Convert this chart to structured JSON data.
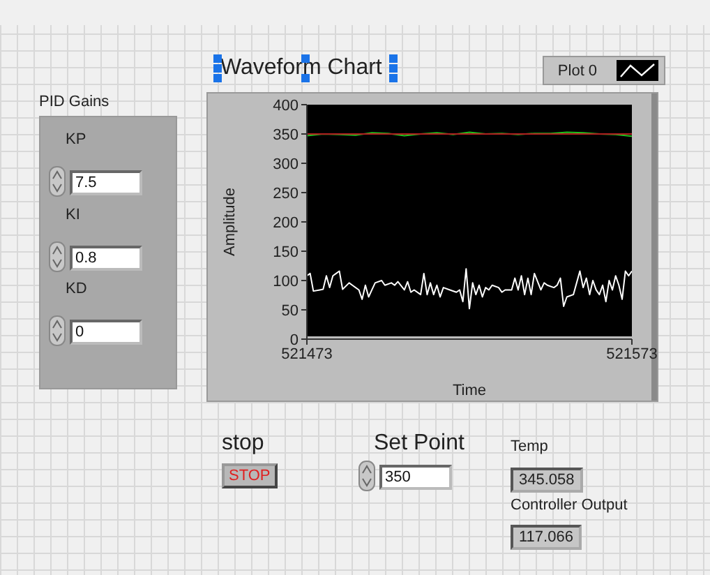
{
  "chart_data": {
    "type": "line",
    "title": "Waveform Chart",
    "xlabel": "Time",
    "ylabel": "Amplitude",
    "xlim": [
      521473,
      521573
    ],
    "xticks": [
      521473,
      521573
    ],
    "ylim": [
      0,
      400
    ],
    "yticks": [
      0,
      50,
      100,
      150,
      200,
      250,
      300,
      350,
      400
    ],
    "legend": "top right",
    "marker": "none",
    "line_style": "solid",
    "series": [
      {
        "name": "Plot 0",
        "color": "#ffffff",
        "x": [
          521473,
          521474,
          521475,
          521477,
          521478,
          521479,
          521480,
          521481,
          521482,
          521483,
          521484,
          521486,
          521487,
          521489,
          521490,
          521491,
          521492,
          521493,
          521494,
          521496,
          521497,
          521499,
          521500,
          521501,
          521503,
          521504,
          521505,
          521506,
          521508,
          521509,
          521510,
          521511,
          521512,
          521513,
          521514,
          521515,
          521517,
          521519,
          521520,
          521521,
          521522,
          521523,
          521524,
          521525,
          521526,
          521527,
          521528,
          521529,
          521530,
          521532,
          521533,
          521534,
          521536,
          521537,
          521538,
          521539,
          521540,
          521541,
          521542,
          521543,
          521545,
          521546,
          521547,
          521549,
          521550,
          521551,
          521552,
          521553,
          521555,
          521556,
          521557,
          521558,
          521559,
          521560,
          521561,
          521562,
          521563,
          521564,
          521565,
          521566,
          521567,
          521568,
          521569,
          521570,
          521571,
          521572,
          521573
        ],
        "values": [
          108,
          112,
          82,
          84,
          85,
          108,
          88,
          108,
          112,
          116,
          85,
          96,
          92,
          84,
          68,
          92,
          72,
          84,
          96,
          100,
          92,
          96,
          92,
          98,
          84,
          98,
          80,
          84,
          76,
          112,
          76,
          96,
          76,
          92,
          72,
          88,
          84,
          80,
          84,
          64,
          120,
          52,
          96,
          76,
          92,
          72,
          88,
          84,
          92,
          88,
          80,
          84,
          84,
          104,
          84,
          108,
          76,
          104,
          76,
          112,
          84,
          96,
          92,
          88,
          92,
          104,
          56,
          72,
          76,
          96,
          116,
          88,
          104,
          76,
          100,
          84,
          76,
          92,
          64,
          100,
          84,
          108,
          92,
          68,
          116,
          108,
          116
        ]
      },
      {
        "color": "#22c01e",
        "x": [
          521473,
          521478,
          521483,
          521488,
          521493,
          521498,
          521503,
          521508,
          521513,
          521518,
          521523,
          521528,
          521533,
          521538,
          521543,
          521548,
          521553,
          521558,
          521563,
          521568,
          521573
        ],
        "values": [
          347,
          350,
          349,
          348,
          352,
          351,
          347,
          350,
          352,
          349,
          353,
          350,
          351,
          349,
          351,
          351,
          353,
          352,
          350,
          349,
          346
        ]
      },
      {
        "color": "#b02020",
        "x": [
          521473,
          521573
        ],
        "values": [
          350,
          350
        ]
      }
    ],
    "annotations": [
      "PID Gains",
      "KP",
      "7.5",
      "KI",
      "0.8",
      "KD",
      "0",
      "stop",
      "STOP",
      "Set Point",
      "350",
      "Temp",
      "345.058",
      "Controller Output",
      "117.066"
    ]
  }
}
